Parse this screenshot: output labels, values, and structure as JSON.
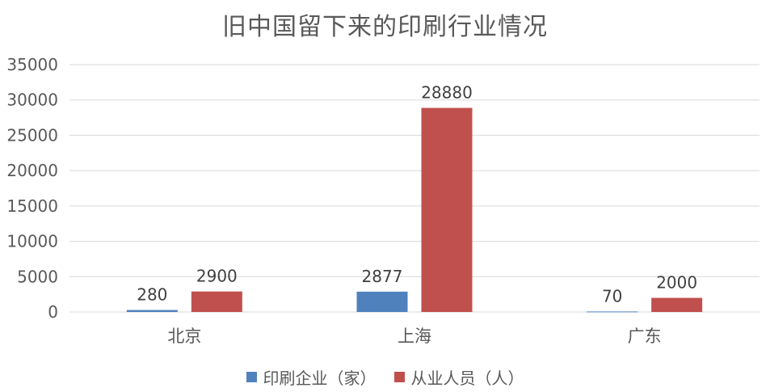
{
  "chart_data": {
    "type": "bar",
    "title": "旧中国留下来的印刷行业情况",
    "categories": [
      "北京",
      "上海",
      "广东"
    ],
    "series": [
      {
        "name": "印刷企业（家）",
        "values": [
          280,
          2877,
          70
        ],
        "color": "#4F81BD"
      },
      {
        "name": "从业人员（人）",
        "values": [
          2900,
          28880,
          2000
        ],
        "color": "#C0504D"
      }
    ],
    "ylim": [
      0,
      35000
    ],
    "yticks": [
      0,
      5000,
      10000,
      15000,
      20000,
      25000,
      30000,
      35000
    ],
    "grid": true,
    "legend_position": "bottom",
    "data_labels": true
  }
}
